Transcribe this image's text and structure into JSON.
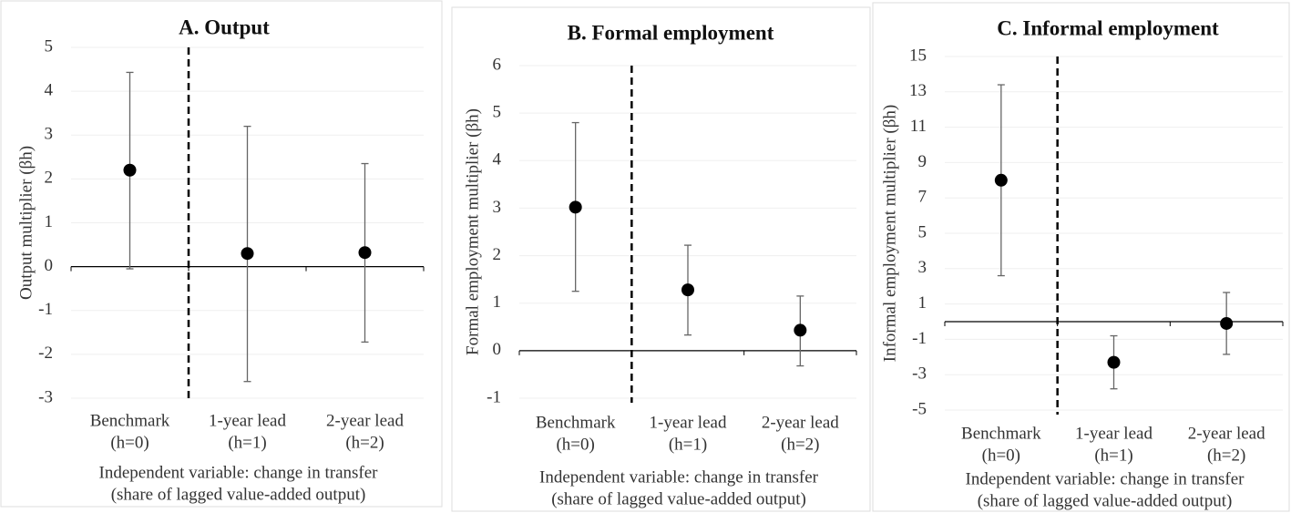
{
  "chart_data": [
    {
      "type": "errorbar",
      "title": "A. Output",
      "ylabel": "Output multiplier (βh)",
      "xlabel": [
        "Independent variable: change in transfer",
        "(share of lagged value-added output)"
      ],
      "categories": [
        [
          "Benchmark",
          "(h=0)"
        ],
        [
          "1-year lead",
          "(h=1)"
        ],
        [
          "2-year lead",
          "(h=2)"
        ]
      ],
      "series": [
        {
          "color": "#000000",
          "values": [
            2.2,
            0.3,
            0.32
          ],
          "lower": [
            -0.05,
            -2.62,
            -1.72
          ],
          "upper": [
            4.43,
            3.2,
            2.35
          ]
        }
      ],
      "ylim": [
        -3,
        5
      ],
      "yticks": [
        -3,
        -2,
        -1,
        0,
        1,
        2,
        3,
        4,
        5
      ],
      "grid": true
    },
    {
      "type": "errorbar",
      "title": "B. Formal employment",
      "ylabel": "Formal employment multiplier (βh)",
      "xlabel": [
        "Independent variable: change in transfer",
        "(share of lagged value-added output)"
      ],
      "categories": [
        [
          "Benchmark",
          "(h=0)"
        ],
        [
          "1-year lead",
          "(h=1)"
        ],
        [
          "2-year lead",
          "(h=2)"
        ]
      ],
      "series": [
        {
          "color": "#000000",
          "values": [
            3.02,
            1.28,
            0.43
          ],
          "lower": [
            1.25,
            0.33,
            -0.32
          ],
          "upper": [
            4.8,
            2.22,
            1.15
          ]
        }
      ],
      "ylim": [
        -1,
        6
      ],
      "yticks": [
        -1,
        0,
        1,
        2,
        3,
        4,
        5,
        6
      ],
      "grid": true
    },
    {
      "type": "errorbar",
      "title": "C. Informal employment",
      "ylabel": "Informal employment multiplier (βh)",
      "xlabel": [
        "Independent variable: change in transfer",
        "(share of lagged value-added output)"
      ],
      "categories": [
        [
          "Benchmark",
          "(h=0)"
        ],
        [
          "1-year lead",
          "(h=1)"
        ],
        [
          "2-year lead",
          "(h=2)"
        ]
      ],
      "series": [
        {
          "color": "#000000",
          "values": [
            8.0,
            -2.3,
            -0.1
          ],
          "lower": [
            2.6,
            -3.8,
            -1.85
          ],
          "upper": [
            13.4,
            -0.8,
            1.65
          ]
        }
      ],
      "ylim": [
        -5,
        15
      ],
      "yticks": [
        -5,
        -3,
        -1,
        1,
        3,
        5,
        7,
        9,
        11,
        13,
        15
      ],
      "grid": true
    }
  ]
}
